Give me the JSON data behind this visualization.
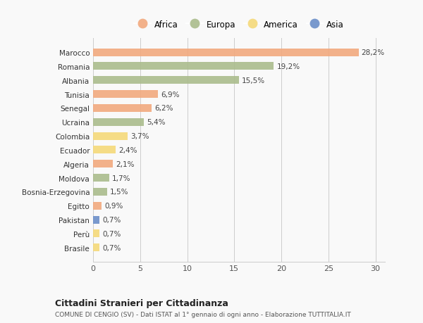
{
  "categories": [
    "Brasile",
    "Perù",
    "Pakistan",
    "Egitto",
    "Bosnia-Erzegovina",
    "Moldova",
    "Algeria",
    "Ecuador",
    "Colombia",
    "Ucraina",
    "Senegal",
    "Tunisia",
    "Albania",
    "Romania",
    "Marocco"
  ],
  "values": [
    0.7,
    0.7,
    0.7,
    0.9,
    1.5,
    1.7,
    2.1,
    2.4,
    3.7,
    5.4,
    6.2,
    6.9,
    15.5,
    19.2,
    28.2
  ],
  "continents": [
    "America",
    "America",
    "Asia",
    "Africa",
    "Europa",
    "Europa",
    "Africa",
    "America",
    "America",
    "Europa",
    "Africa",
    "Africa",
    "Europa",
    "Europa",
    "Africa"
  ],
  "colors": {
    "Africa": "#F2A97E",
    "Europa": "#ABBC8C",
    "America": "#F5D97A",
    "Asia": "#6B8FC9"
  },
  "labels": [
    "0,7%",
    "0,7%",
    "0,7%",
    "0,9%",
    "1,5%",
    "1,7%",
    "2,1%",
    "2,4%",
    "3,7%",
    "5,4%",
    "6,2%",
    "6,9%",
    "15,5%",
    "19,2%",
    "28,2%"
  ],
  "title": "Cittadini Stranieri per Cittadinanza",
  "subtitle": "COMUNE DI CENGIO (SV) - Dati ISTAT al 1° gennaio di ogni anno - Elaborazione TUTTITALIA.IT",
  "xlim": [
    0,
    31
  ],
  "xticks": [
    0,
    5,
    10,
    15,
    20,
    25,
    30
  ],
  "legend_order": [
    "Africa",
    "Europa",
    "America",
    "Asia"
  ],
  "background_color": "#f9f9f9",
  "bar_height": 0.55
}
